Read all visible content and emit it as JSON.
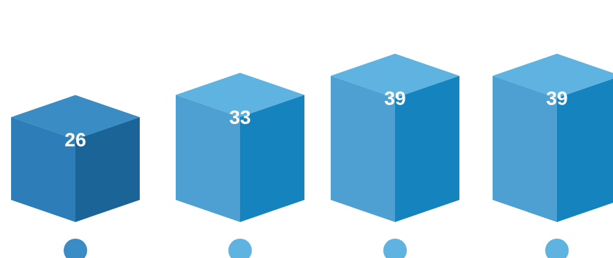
{
  "chart_data": {
    "type": "bar",
    "style": "3d-isometric-boxes",
    "categories": [
      "",
      "",
      "",
      ""
    ],
    "values": [
      26,
      33,
      39,
      39
    ],
    "labels": [
      "26",
      "33",
      "39",
      "39"
    ],
    "title": "",
    "xlabel": "",
    "ylabel": "",
    "grid": false,
    "legend": "none",
    "colors": [
      {
        "top": "#3a8cc4",
        "left": "#2d7db8",
        "right": "#1a6498",
        "marker": "#3a8cc4"
      },
      {
        "top": "#5fb3e0",
        "left": "#4fa0d2",
        "right": "#1583bd",
        "marker": "#5fb3e0"
      },
      {
        "top": "#5fb3e0",
        "left": "#4fa0d2",
        "right": "#1583bd",
        "marker": "#5fb3e0"
      },
      {
        "top": "#5fb3e0",
        "left": "#4fa0d2",
        "right": "#1583bd",
        "marker": "#5fb3e0"
      }
    ]
  }
}
